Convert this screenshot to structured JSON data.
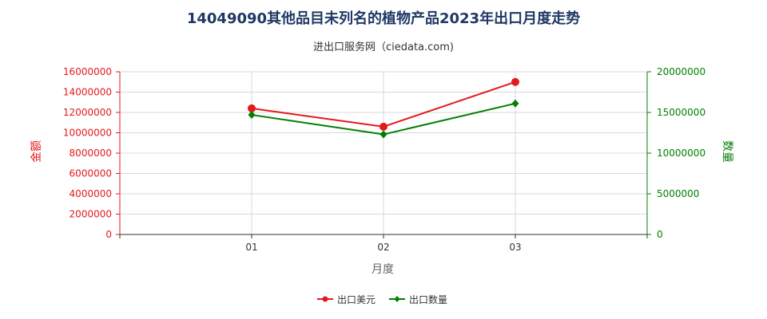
{
  "chart_data": {
    "type": "line",
    "title": "14049090其他品目未列名的植物产品2023年出口月度走势",
    "subtitle": "进出口服务网（ciedata.com)",
    "xlabel": "月度",
    "ylabel_left": "金额",
    "ylabel_right": "数量",
    "categories": [
      "01",
      "02",
      "03"
    ],
    "ylim_left": [
      0,
      16000000
    ],
    "yticks_left": [
      "0",
      "2000000",
      "4000000",
      "6000000",
      "8000000",
      "10000000",
      "12000000",
      "14000000",
      "16000000"
    ],
    "ylim_right": [
      0,
      20000000
    ],
    "yticks_right": [
      "0",
      "5000000",
      "10000000",
      "15000000",
      "20000000"
    ],
    "grid": true,
    "legend_position": "bottom",
    "series": [
      {
        "name": "出口美元",
        "axis": "left",
        "color": "#e31a1c",
        "marker": "circle",
        "values": [
          12400000,
          10600000,
          15000000
        ]
      },
      {
        "name": "出口数量",
        "axis": "right",
        "color": "#008000",
        "marker": "diamond",
        "values": [
          14700000,
          12300000,
          16100000
        ]
      }
    ]
  }
}
